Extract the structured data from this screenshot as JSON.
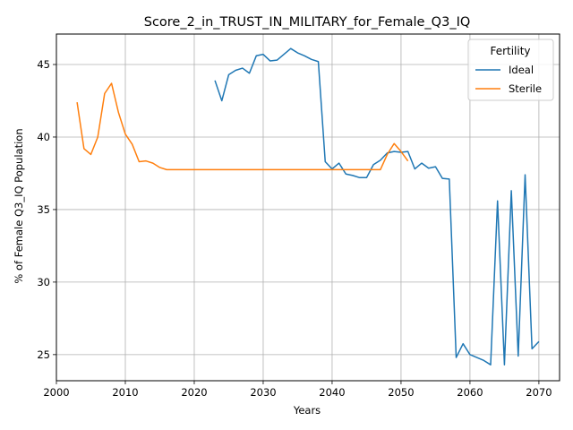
{
  "chart_data": {
    "type": "line",
    "title": "Score_2_in_TRUST_IN_MILITARY_for_Female_Q3_IQ",
    "xlabel": "Years",
    "ylabel": "% of Female Q3_IQ Population",
    "xlim": [
      2000,
      2073
    ],
    "ylim": [
      23.2,
      47.1
    ],
    "xticks": [
      2000,
      2010,
      2020,
      2030,
      2040,
      2050,
      2060,
      2070
    ],
    "yticks": [
      25,
      30,
      35,
      40,
      45
    ],
    "grid": true,
    "legend": {
      "title": "Fertility",
      "placement": "top-right"
    },
    "series": [
      {
        "name": "Ideal",
        "color": "#1f77b4",
        "x": [
          2023,
          2024,
          2025,
          2026,
          2027,
          2028,
          2029,
          2030,
          2031,
          2032,
          2033,
          2034,
          2035,
          2036,
          2037,
          2038,
          2039,
          2040,
          2041,
          2042,
          2043,
          2044,
          2045,
          2046,
          2047,
          2048,
          2049,
          2050,
          2051,
          2052,
          2053,
          2054,
          2055,
          2056,
          2057,
          2058,
          2059,
          2060,
          2061,
          2062,
          2063,
          2064,
          2065,
          2066,
          2067,
          2068,
          2069,
          2070
        ],
        "y": [
          43.9,
          42.5,
          44.3,
          44.6,
          44.75,
          44.4,
          45.6,
          45.7,
          45.25,
          45.3,
          45.7,
          46.1,
          45.8,
          45.6,
          45.35,
          45.2,
          38.3,
          37.8,
          38.2,
          37.45,
          37.35,
          37.2,
          37.2,
          38.1,
          38.4,
          38.9,
          39.0,
          38.95,
          39.0,
          37.8,
          38.2,
          37.85,
          37.95,
          37.15,
          37.1,
          24.8,
          25.75,
          25.0,
          24.8,
          24.6,
          24.3,
          35.6,
          24.3,
          36.3,
          24.9,
          37.4,
          25.4,
          25.9
        ]
      },
      {
        "name": "Sterile",
        "color": "#ff7f0e",
        "x": [
          2003,
          2004,
          2005,
          2006,
          2007,
          2008,
          2009,
          2010,
          2011,
          2012,
          2013,
          2014,
          2015,
          2016,
          2017,
          2018,
          2019,
          2020,
          2021,
          2022,
          2023,
          2024,
          2025,
          2026,
          2027,
          2028,
          2029,
          2030,
          2031,
          2032,
          2033,
          2034,
          2035,
          2036,
          2037,
          2038,
          2039,
          2040,
          2041,
          2042,
          2043,
          2044,
          2045,
          2046,
          2047,
          2048,
          2049,
          2050,
          2051
        ],
        "y": [
          42.4,
          39.2,
          38.8,
          40.0,
          43.0,
          43.7,
          41.7,
          40.2,
          39.5,
          38.3,
          38.35,
          38.2,
          37.9,
          37.75,
          37.75,
          37.75,
          37.75,
          37.75,
          37.75,
          37.75,
          37.75,
          37.75,
          37.75,
          37.75,
          37.75,
          37.75,
          37.75,
          37.75,
          37.75,
          37.75,
          37.75,
          37.75,
          37.75,
          37.75,
          37.75,
          37.75,
          37.75,
          37.75,
          37.75,
          37.75,
          37.75,
          37.75,
          37.75,
          37.75,
          37.75,
          38.8,
          39.55,
          39.0,
          38.35
        ]
      }
    ]
  }
}
